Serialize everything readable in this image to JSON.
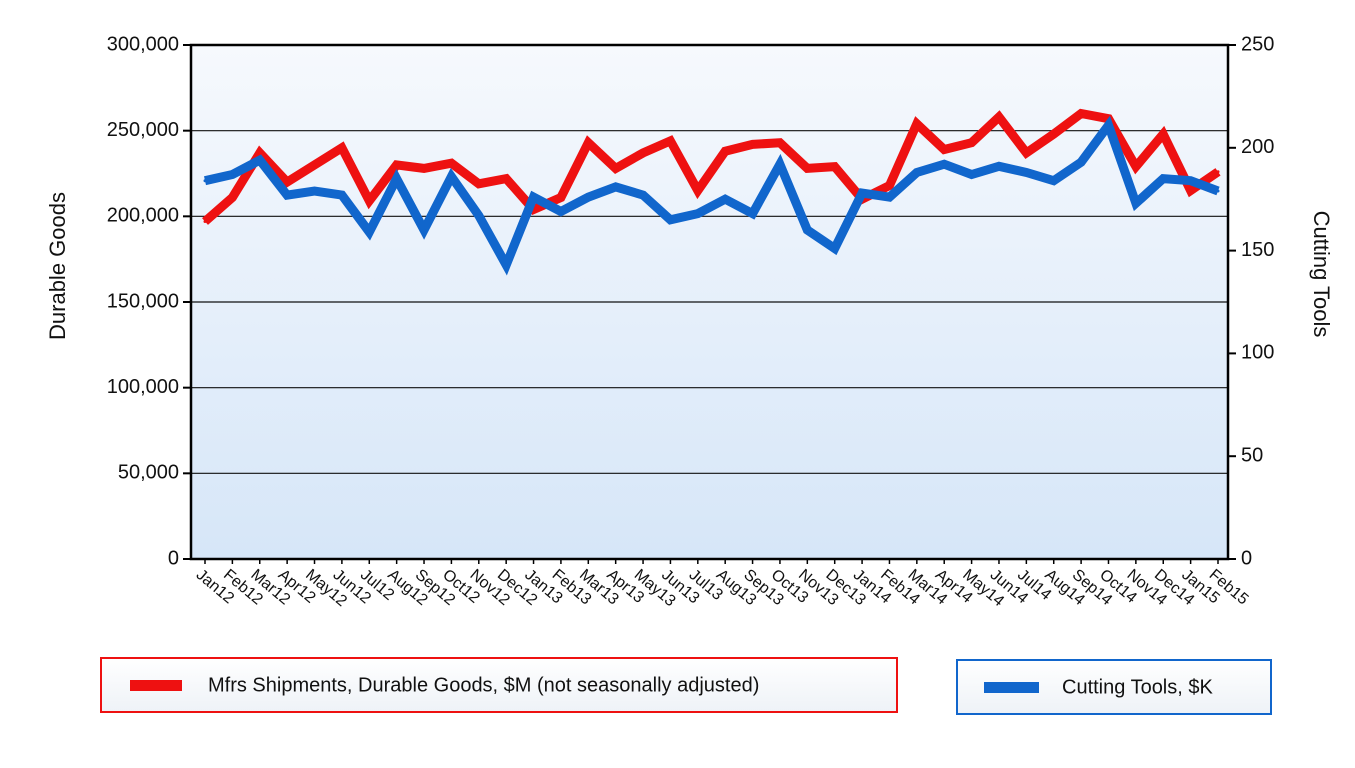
{
  "chart_data": {
    "type": "line",
    "categories": [
      "Jan12",
      "Feb12",
      "Mar12",
      "Apr12",
      "May12",
      "Jun12",
      "Jul12",
      "Aug12",
      "Sep12",
      "Oct12",
      "Nov12",
      "Dec12",
      "Jan13",
      "Feb13",
      "Mar13",
      "Apr13",
      "May13",
      "Jun13",
      "Jul13",
      "Aug13",
      "Sep13",
      "Oct13",
      "Nov13",
      "Dec13",
      "Jan14",
      "Feb14",
      "Mar14",
      "Apr14",
      "May14",
      "Jun14",
      "Jul14",
      "Aug14",
      "Sep14",
      "Oct14",
      "Nov14",
      "Dec14",
      "Jan15",
      "Feb15"
    ],
    "series": [
      {
        "name": "Mfrs Shipments, Durable Goods, $M (not seasonally adjusted)",
        "axis": "left",
        "color": "#ee1111",
        "values": [
          197000,
          211000,
          237000,
          220000,
          230000,
          240000,
          209000,
          230000,
          228000,
          231000,
          219000,
          222000,
          204000,
          211000,
          243000,
          228000,
          237000,
          244000,
          215000,
          238000,
          242000,
          243000,
          228000,
          229000,
          210000,
          218000,
          254000,
          239000,
          243000,
          258000,
          237000,
          248000,
          260000,
          257000,
          229000,
          248000,
          215000,
          226000
        ]
      },
      {
        "name": "Cutting Tools, $K",
        "axis": "right",
        "color": "#1166cc",
        "values": [
          184,
          187,
          194,
          177,
          179,
          177,
          159,
          185,
          160,
          186,
          167,
          143,
          176,
          169,
          176,
          181,
          177,
          165,
          168,
          175,
          168,
          192,
          160,
          151,
          178,
          176,
          188,
          192,
          187,
          191,
          188,
          184,
          193,
          211,
          173,
          185,
          184,
          179
        ]
      }
    ],
    "y_left": {
      "label": "Durable Goods",
      "ylim": [
        0,
        300000
      ],
      "ticks": [
        "0",
        "50,000",
        "100,000",
        "150,000",
        "200,000",
        "250,000",
        "300,000"
      ]
    },
    "y_right": {
      "label": "Cutting Tools",
      "ylim": [
        0,
        250
      ],
      "ticks": [
        "0",
        "50",
        "100",
        "150",
        "200",
        "250"
      ]
    },
    "grid": true,
    "legend_placement": "bottom"
  }
}
